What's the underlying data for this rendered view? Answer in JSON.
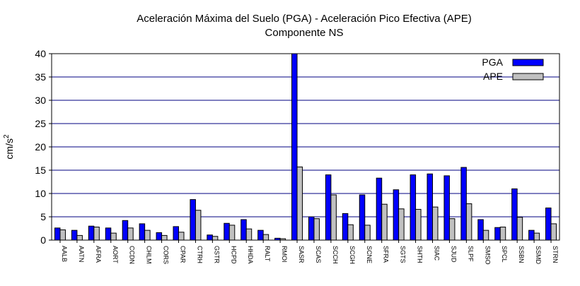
{
  "chart_data": {
    "type": "bar",
    "title": "Aceleración Máxima del Suelo (PGA) -   Aceleración Pico Efectiva (APE)",
    "subtitle": "Componente NS",
    "xlabel": "",
    "ylabel": "cm/s",
    "ylabel_sup": "2",
    "ylim": [
      0,
      40
    ],
    "yticks": [
      "0",
      "5",
      "10",
      "15",
      "20",
      "25",
      "30",
      "35",
      "40"
    ],
    "grid": true,
    "legend_position": "top-right",
    "categories": [
      "AALB",
      "AATN",
      "AFRA",
      "AORT",
      "CCDN",
      "CHLM",
      "CORS",
      "CPAR",
      "CTRH",
      "GSTR",
      "HCPD",
      "HHDA",
      "RALT",
      "RMOI",
      "SASR",
      "SCAS",
      "SCCH",
      "SCGH",
      "SCNE",
      "SFRA",
      "SGTS",
      "SHTH",
      "SIAC",
      "SJUD",
      "SLPF",
      "SMSO",
      "SPCL",
      "SSBN",
      "SSMD",
      "STRN"
    ],
    "series": [
      {
        "name": "PGA",
        "color": "#0000ff",
        "values": [
          2.6,
          2.1,
          3.0,
          2.6,
          4.2,
          3.5,
          1.6,
          2.9,
          8.7,
          1.1,
          3.6,
          4.4,
          2.1,
          0.4,
          40.0,
          5.0,
          14.0,
          5.7,
          9.7,
          13.3,
          10.8,
          14.0,
          14.2,
          13.8,
          15.6,
          4.4,
          2.7,
          11.0,
          2.1,
          6.9
        ]
      },
      {
        "name": "APE",
        "color": "#c0c0c0",
        "values": [
          2.2,
          1.0,
          2.8,
          1.5,
          2.6,
          2.1,
          1.0,
          1.7,
          6.4,
          0.8,
          3.2,
          2.4,
          1.2,
          0.3,
          15.7,
          4.6,
          9.7,
          3.3,
          3.2,
          7.7,
          6.7,
          6.6,
          7.1,
          4.6,
          7.8,
          2.1,
          2.8,
          4.9,
          1.5,
          3.5
        ]
      }
    ]
  }
}
